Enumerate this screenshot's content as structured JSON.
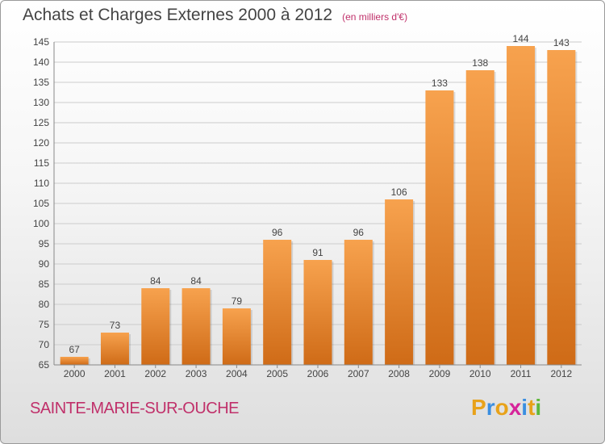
{
  "title": "Achats et Charges Externes 2000 à 2012",
  "subtitle": "(en milliers d'€)",
  "commune": "SAINTE-MARIE-SUR-OUCHE",
  "logo": {
    "letters": [
      "P",
      "r",
      "o",
      "x",
      "i",
      "t",
      "i"
    ],
    "colors": [
      "#e8a21a",
      "#3a8ee0",
      "#e8a21a",
      "#d6249a",
      "#3a8ee0",
      "#e8a21a",
      "#5db83b"
    ]
  },
  "colors": {
    "bar_top": "#f7a24e",
    "bar_bottom": "#cf6b17",
    "grid": "#cccccc",
    "axis_text": "#444444"
  },
  "chart_data": {
    "type": "bar",
    "title": "Achats et Charges Externes 2000 à 2012",
    "subtitle": "(en milliers d'€)",
    "categories": [
      "2000",
      "2001",
      "2002",
      "2003",
      "2004",
      "2005",
      "2006",
      "2007",
      "2008",
      "2009",
      "2010",
      "2011",
      "2012"
    ],
    "values": [
      67,
      73,
      84,
      84,
      79,
      96,
      91,
      96,
      106,
      133,
      138,
      144,
      143
    ],
    "ylim": [
      65,
      145
    ],
    "yticks": [
      65,
      70,
      75,
      80,
      85,
      90,
      95,
      100,
      105,
      110,
      115,
      120,
      125,
      130,
      135,
      140,
      145
    ],
    "grid": true
  }
}
